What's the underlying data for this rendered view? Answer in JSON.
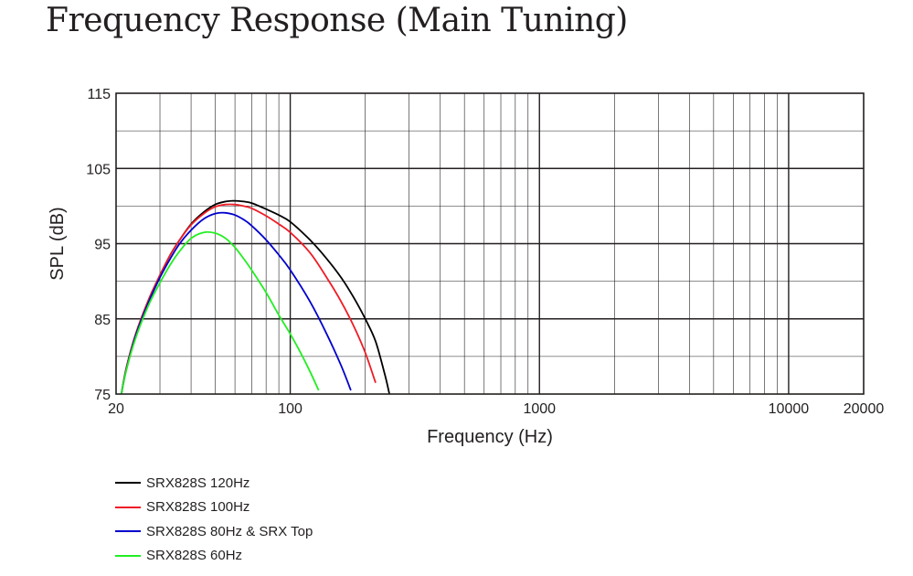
{
  "chart_data": {
    "type": "line",
    "title": "Frequency Response (Main Tuning)",
    "xlabel": "Frequency (Hz)",
    "ylabel": "SPL (dB)",
    "xscale": "log",
    "xlim": [
      20,
      20000
    ],
    "ylim": [
      75,
      115
    ],
    "xticks": [
      20,
      100,
      1000,
      10000,
      20000
    ],
    "xtick_labels": [
      "20",
      "100",
      "1000",
      "10000",
      "20000"
    ],
    "yticks": [
      75,
      85,
      95,
      105,
      115
    ],
    "ytick_labels": [
      "75",
      "85",
      "95",
      "105",
      "115"
    ],
    "grid": true,
    "legend_position": "bottom-left, below plot",
    "series": [
      {
        "name": "SRX828S 120Hz",
        "color": "#000000",
        "x": [
          21,
          22,
          24,
          27,
          30,
          33,
          36,
          40,
          45,
          50,
          55,
          60,
          65,
          70,
          80,
          90,
          100,
          120,
          140,
          160,
          180,
          200,
          220,
          240,
          250
        ],
        "y": [
          75,
          78.5,
          83,
          87.5,
          90.8,
          93.5,
          95.5,
          97.6,
          99.2,
          100.2,
          100.6,
          100.7,
          100.6,
          100.4,
          99.6,
          98.8,
          97.9,
          95.5,
          93,
          90.5,
          87.8,
          85,
          82,
          77.5,
          75
        ]
      },
      {
        "name": "SRX828S 100Hz",
        "color": "#ee1c25",
        "x": [
          21,
          22,
          24,
          27,
          30,
          33,
          36,
          40,
          45,
          50,
          55,
          60,
          65,
          70,
          80,
          90,
          100,
          120,
          140,
          160,
          180,
          200,
          220
        ],
        "y": [
          75,
          78.5,
          83,
          87.5,
          90.8,
          93.5,
          95.5,
          97.5,
          99,
          99.9,
          100.2,
          100.2,
          100,
          99.7,
          98.7,
          97.6,
          96.5,
          93.8,
          90.5,
          87.3,
          84,
          80.5,
          76.5
        ]
      },
      {
        "name": "SRX828S 80Hz & SRX Top",
        "color": "#0000cc",
        "x": [
          21,
          22,
          24,
          27,
          30,
          33,
          36,
          40,
          45,
          50,
          55,
          60,
          65,
          70,
          80,
          90,
          100,
          120,
          140,
          160,
          175
        ],
        "y": [
          75,
          78.3,
          82.8,
          87.2,
          90.5,
          93,
          95,
          96.8,
          98.3,
          99,
          99.1,
          98.8,
          98.2,
          97.4,
          95.5,
          93.5,
          91.5,
          87.3,
          83,
          78.8,
          75.5
        ]
      },
      {
        "name": "SRX828S 60Hz",
        "color": "#22ee22",
        "x": [
          21,
          22,
          24,
          27,
          30,
          33,
          36,
          40,
          45,
          50,
          55,
          60,
          65,
          70,
          80,
          90,
          100,
          110,
          120,
          130
        ],
        "y": [
          75,
          78.2,
          82.5,
          86.8,
          89.8,
          92.2,
          94,
          95.7,
          96.5,
          96.4,
          95.7,
          94.5,
          93,
          91.5,
          88.5,
          85.5,
          83,
          80.5,
          78,
          75.5
        ]
      }
    ]
  }
}
